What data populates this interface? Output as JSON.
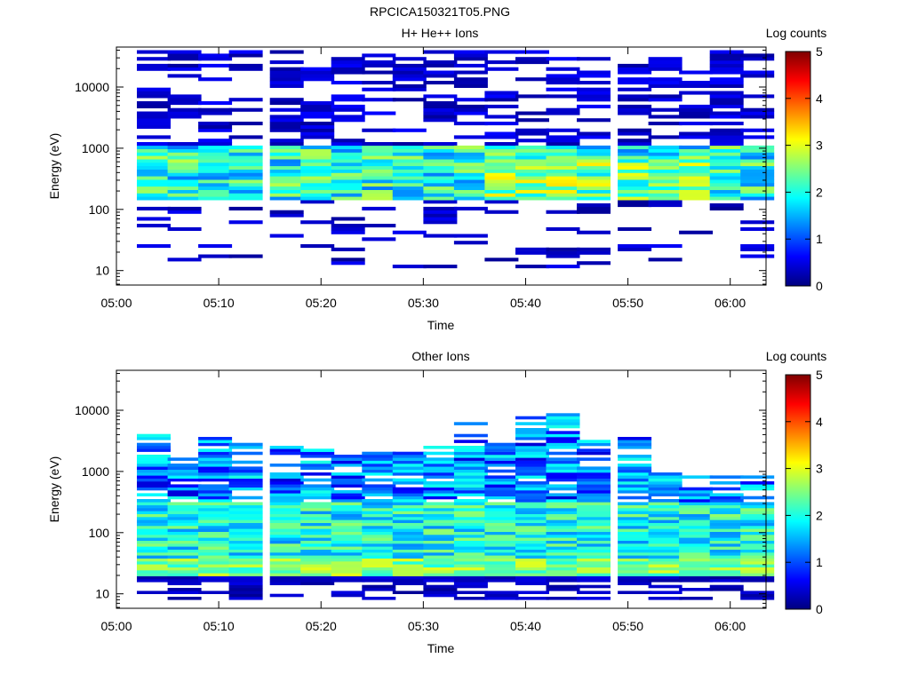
{
  "figure_title": "RPCICA150321T05.PNG",
  "colors": {
    "colormap": [
      "#00007f",
      "#0000ff",
      "#007fff",
      "#00ffff",
      "#7fff7f",
      "#ffff00",
      "#ff7f00",
      "#ff0000",
      "#7f0000"
    ]
  },
  "chart_data": [
    {
      "type": "heatmap",
      "title": "H+ He++ Ions",
      "xlabel": "Time",
      "ylabel": "Energy (eV)",
      "x_ticks": [
        "05:00",
        "05:10",
        "05:20",
        "05:30",
        "05:40",
        "05:50",
        "06:00"
      ],
      "y_ticks": [
        "10",
        "100",
        "1000",
        "10000"
      ],
      "y_scale": "log",
      "colorbar": {
        "label": "Log counts",
        "range": [
          0,
          5
        ],
        "ticks": [
          "0",
          "1",
          "2",
          "3",
          "4",
          "5"
        ]
      },
      "time_bins": [
        "05:02",
        "05:05",
        "05:08",
        "05:11",
        "05:15",
        "05:18",
        "05:21",
        "05:24",
        "05:27",
        "05:30",
        "05:33",
        "05:36",
        "05:39",
        "05:42",
        "05:45",
        "05:49",
        "05:52",
        "05:55",
        "05:58",
        "06:01"
      ],
      "energy_range_eV": [
        11,
        40000
      ],
      "profile": "hplus"
    },
    {
      "type": "heatmap",
      "title": "Other Ions",
      "xlabel": "Time",
      "ylabel": "Energy (eV)",
      "x_ticks": [
        "05:00",
        "05:10",
        "05:20",
        "05:30",
        "05:40",
        "05:50",
        "06:00"
      ],
      "y_ticks": [
        "10",
        "100",
        "1000",
        "10000"
      ],
      "y_scale": "log",
      "colorbar": {
        "label": "Log counts",
        "range": [
          0,
          5
        ],
        "ticks": [
          "0",
          "1",
          "2",
          "3",
          "4",
          "5"
        ]
      },
      "time_bins": [
        "05:02",
        "05:05",
        "05:08",
        "05:11",
        "05:15",
        "05:18",
        "05:21",
        "05:24",
        "05:27",
        "05:30",
        "05:33",
        "05:36",
        "05:39",
        "05:42",
        "05:45",
        "05:49",
        "05:52",
        "05:55",
        "05:58",
        "06:01"
      ],
      "energy_range_eV": [
        8,
        10000
      ],
      "profile": "other"
    }
  ]
}
